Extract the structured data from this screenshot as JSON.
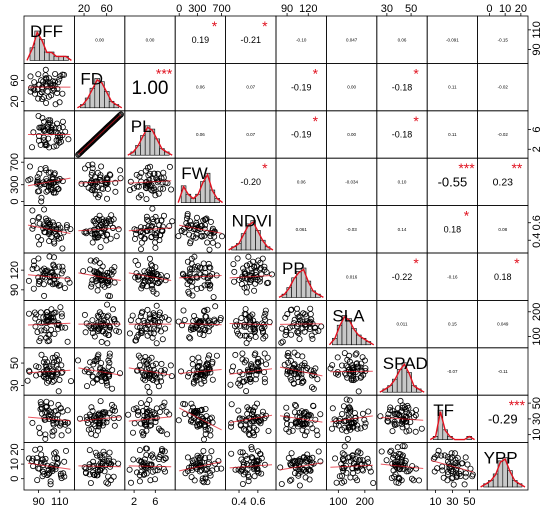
{
  "chart_data": {
    "type": "scatter-matrix",
    "title": "",
    "variables": [
      "DFF",
      "FD",
      "PL",
      "FW",
      "NDVI",
      "PP",
      "SLA",
      "SPAD",
      "TF",
      "YPP"
    ],
    "ranges": {
      "DFF": [
        80,
        120
      ],
      "FD": [
        10,
        85
      ],
      "PL": [
        1,
        9
      ],
      "FW": [
        0,
        700
      ],
      "NDVI": [
        0.3,
        0.75
      ],
      "PP": [
        80,
        140
      ],
      "SLA": [
        70,
        230
      ],
      "SPAD": [
        25,
        60
      ],
      "TF": [
        5,
        55
      ],
      "YPP": [
        -5,
        22
      ]
    },
    "correlations": [
      {
        "row": "DFF",
        "col": "FD",
        "r": "0.00",
        "stars": ""
      },
      {
        "row": "DFF",
        "col": "PL",
        "r": "0.00",
        "stars": ""
      },
      {
        "row": "DFF",
        "col": "FW",
        "r": "0.19",
        "stars": "*"
      },
      {
        "row": "DFF",
        "col": "NDVI",
        "r": "-0.21",
        "stars": "*"
      },
      {
        "row": "DFF",
        "col": "PP",
        "r": "-0.10",
        "stars": ""
      },
      {
        "row": "DFF",
        "col": "SLA",
        "r": "0.047",
        "stars": ""
      },
      {
        "row": "DFF",
        "col": "SPAD",
        "r": "0.06",
        "stars": ""
      },
      {
        "row": "DFF",
        "col": "TF",
        "r": "-0.091",
        "stars": ""
      },
      {
        "row": "DFF",
        "col": "YPP",
        "r": "-0.15",
        "stars": ""
      },
      {
        "row": "FD",
        "col": "PL",
        "r": "1.00",
        "stars": "***"
      },
      {
        "row": "FD",
        "col": "FW",
        "r": "0.06",
        "stars": ""
      },
      {
        "row": "FD",
        "col": "NDVI",
        "r": "0.07",
        "stars": ""
      },
      {
        "row": "FD",
        "col": "PP",
        "r": "-0.19",
        "stars": "*"
      },
      {
        "row": "FD",
        "col": "SLA",
        "r": "0.00",
        "stars": ""
      },
      {
        "row": "FD",
        "col": "SPAD",
        "r": "-0.18",
        "stars": "*"
      },
      {
        "row": "FD",
        "col": "TF",
        "r": "0.11",
        "stars": ""
      },
      {
        "row": "FD",
        "col": "YPP",
        "r": "-0.02",
        "stars": ""
      },
      {
        "row": "PL",
        "col": "FW",
        "r": "0.06",
        "stars": ""
      },
      {
        "row": "PL",
        "col": "NDVI",
        "r": "0.07",
        "stars": ""
      },
      {
        "row": "PL",
        "col": "PP",
        "r": "-0.19",
        "stars": "*"
      },
      {
        "row": "PL",
        "col": "SLA",
        "r": "0.00",
        "stars": ""
      },
      {
        "row": "PL",
        "col": "SPAD",
        "r": "-0.18",
        "stars": "*"
      },
      {
        "row": "PL",
        "col": "TF",
        "r": "0.11",
        "stars": ""
      },
      {
        "row": "PL",
        "col": "YPP",
        "r": "-0.02",
        "stars": ""
      },
      {
        "row": "FW",
        "col": "NDVI",
        "r": "-0.20",
        "stars": "*"
      },
      {
        "row": "FW",
        "col": "PP",
        "r": "0.06",
        "stars": ""
      },
      {
        "row": "FW",
        "col": "SLA",
        "r": "-0.034",
        "stars": ""
      },
      {
        "row": "FW",
        "col": "SPAD",
        "r": "0.10",
        "stars": ""
      },
      {
        "row": "FW",
        "col": "TF",
        "r": "-0.55",
        "stars": "***"
      },
      {
        "row": "FW",
        "col": "YPP",
        "r": "0.23",
        "stars": "**"
      },
      {
        "row": "NDVI",
        "col": "PP",
        "r": "0.061",
        "stars": ""
      },
      {
        "row": "NDVI",
        "col": "SLA",
        "r": "-0.03",
        "stars": ""
      },
      {
        "row": "NDVI",
        "col": "SPAD",
        "r": "0.14",
        "stars": ""
      },
      {
        "row": "NDVI",
        "col": "TF",
        "r": "0.18",
        "stars": "*"
      },
      {
        "row": "NDVI",
        "col": "YPP",
        "r": "0.08",
        "stars": ""
      },
      {
        "row": "PP",
        "col": "SLA",
        "r": "0.016",
        "stars": ""
      },
      {
        "row": "PP",
        "col": "SPAD",
        "r": "-0.22",
        "stars": "*"
      },
      {
        "row": "PP",
        "col": "TF",
        "r": "-0.16",
        "stars": ""
      },
      {
        "row": "PP",
        "col": "YPP",
        "r": "0.18",
        "stars": "*"
      },
      {
        "row": "SLA",
        "col": "SPAD",
        "r": "0.011",
        "stars": ""
      },
      {
        "row": "SLA",
        "col": "TF",
        "r": "0.15",
        "stars": ""
      },
      {
        "row": "SLA",
        "col": "YPP",
        "r": "0.049",
        "stars": ""
      },
      {
        "row": "SPAD",
        "col": "TF",
        "r": "-0.07",
        "stars": ""
      },
      {
        "row": "SPAD",
        "col": "YPP",
        "r": "-0.11",
        "stars": ""
      },
      {
        "row": "TF",
        "col": "YPP",
        "r": "-0.29",
        "stars": "***"
      }
    ],
    "axis_ticks": {
      "top": [
        {
          "var": "FD",
          "ticks": [
            20,
            60
          ]
        },
        {
          "var": "FW",
          "ticks": [
            0,
            300,
            700
          ]
        },
        {
          "var": "PP",
          "ticks": [
            90,
            120
          ]
        },
        {
          "var": "SPAD",
          "ticks": [
            30,
            50
          ]
        },
        {
          "var": "YPP",
          "ticks": [
            0,
            10,
            20
          ]
        }
      ],
      "bottom": [
        {
          "var": "DFF",
          "ticks": [
            90,
            110
          ]
        },
        {
          "var": "PL",
          "ticks": [
            2,
            6
          ]
        },
        {
          "var": "NDVI",
          "ticks": [
            0.4,
            0.6
          ]
        },
        {
          "var": "SLA",
          "ticks": [
            100,
            200
          ]
        },
        {
          "var": "TF",
          "ticks": [
            10,
            30,
            50
          ]
        }
      ],
      "left": [
        {
          "var": "FD",
          "ticks": [
            20,
            60
          ]
        },
        {
          "var": "FW",
          "ticks": [
            0,
            300,
            700
          ]
        },
        {
          "var": "PP",
          "ticks": [
            90,
            120
          ]
        },
        {
          "var": "SPAD",
          "ticks": [
            30,
            50
          ]
        },
        {
          "var": "YPP",
          "ticks": [
            0,
            10,
            20
          ]
        }
      ],
      "right": [
        {
          "var": "DFF",
          "ticks": [
            90,
            110
          ]
        },
        {
          "var": "PL",
          "ticks": [
            2,
            6
          ]
        },
        {
          "var": "NDVI",
          "ticks": [
            0.4,
            0.6
          ]
        },
        {
          "var": "SLA",
          "ticks": [
            100,
            200
          ]
        },
        {
          "var": "TF",
          "ticks": [
            10,
            30,
            50
          ]
        }
      ]
    },
    "histograms": {
      "DFF": [
        3,
        7,
        5,
        2,
        2,
        1,
        1,
        1
      ],
      "FD": [
        1,
        3,
        6,
        9,
        8,
        5,
        2,
        1
      ],
      "PL": [
        1,
        3,
        6,
        9,
        8,
        5,
        2,
        1
      ],
      "FW": [
        4,
        2,
        1,
        2,
        5,
        7,
        3,
        1
      ],
      "NDVI": [
        1,
        2,
        5,
        8,
        9,
        6,
        3,
        1
      ],
      "PP": [
        1,
        3,
        6,
        8,
        9,
        5,
        2,
        1
      ],
      "SLA": [
        2,
        6,
        9,
        8,
        5,
        3,
        2,
        1
      ],
      "SPAD": [
        1,
        2,
        4,
        7,
        9,
        6,
        2,
        1
      ],
      "TF": [
        1,
        9,
        3,
        1,
        0,
        0,
        0,
        1
      ],
      "YPP": [
        1,
        2,
        4,
        8,
        9,
        5,
        2,
        1
      ]
    },
    "grid": false,
    "legend": "none",
    "colors": {
      "significance_stars": "#e0101e",
      "density_line": "#e0101e",
      "bars": "#c8c8c8"
    }
  }
}
